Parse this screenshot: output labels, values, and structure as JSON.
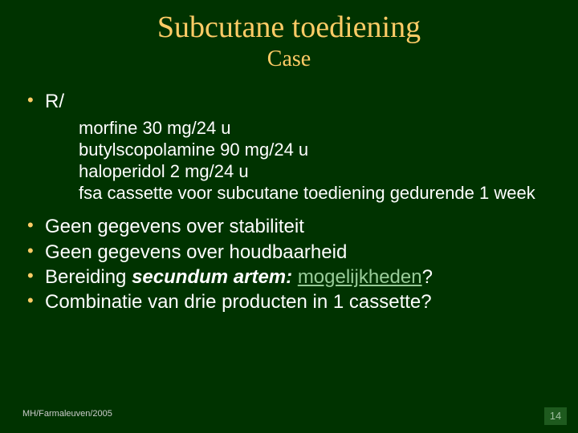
{
  "colors": {
    "background": "#003300",
    "title": "#ffcc66",
    "bullet": "#ffcc66",
    "text": "#ffffff",
    "link": "#99cc99",
    "footer_text": "#cccccc",
    "page_badge_bg": "#1e5a1e",
    "page_badge_text": "#9fbf9f"
  },
  "fonts": {
    "title_family": "Georgia, 'Times New Roman', serif",
    "title_size_pt": 29,
    "subtitle_size_pt": 21,
    "body_family": "Arial, Helvetica, sans-serif",
    "body_size_pt": 18,
    "sub_size_pt": 17,
    "footer_size_pt": 8
  },
  "title": "Subcutane toediening",
  "subtitle": "Case",
  "bullets": {
    "b0": "R/",
    "b1": "Geen gegevens over stabiliteit",
    "b2": "Geen gegevens over houdbaarheid",
    "b3_pre": "Bereiding ",
    "b3_em": "secundum artem:",
    "b3_link": "mogelijkheden",
    "b3_post": "?",
    "b4": "Combinatie van drie producten in 1 cassette?"
  },
  "sub": {
    "s0": "morfine 30 mg/24 u",
    "s1": "butylscopolamine 90 mg/24 u",
    "s2": "haloperidol 2 mg/24 u",
    "s3": "fsa cassette voor subcutane toediening gedurende 1 week"
  },
  "footer": "MH/Farmaleuven/2005",
  "page": "14"
}
